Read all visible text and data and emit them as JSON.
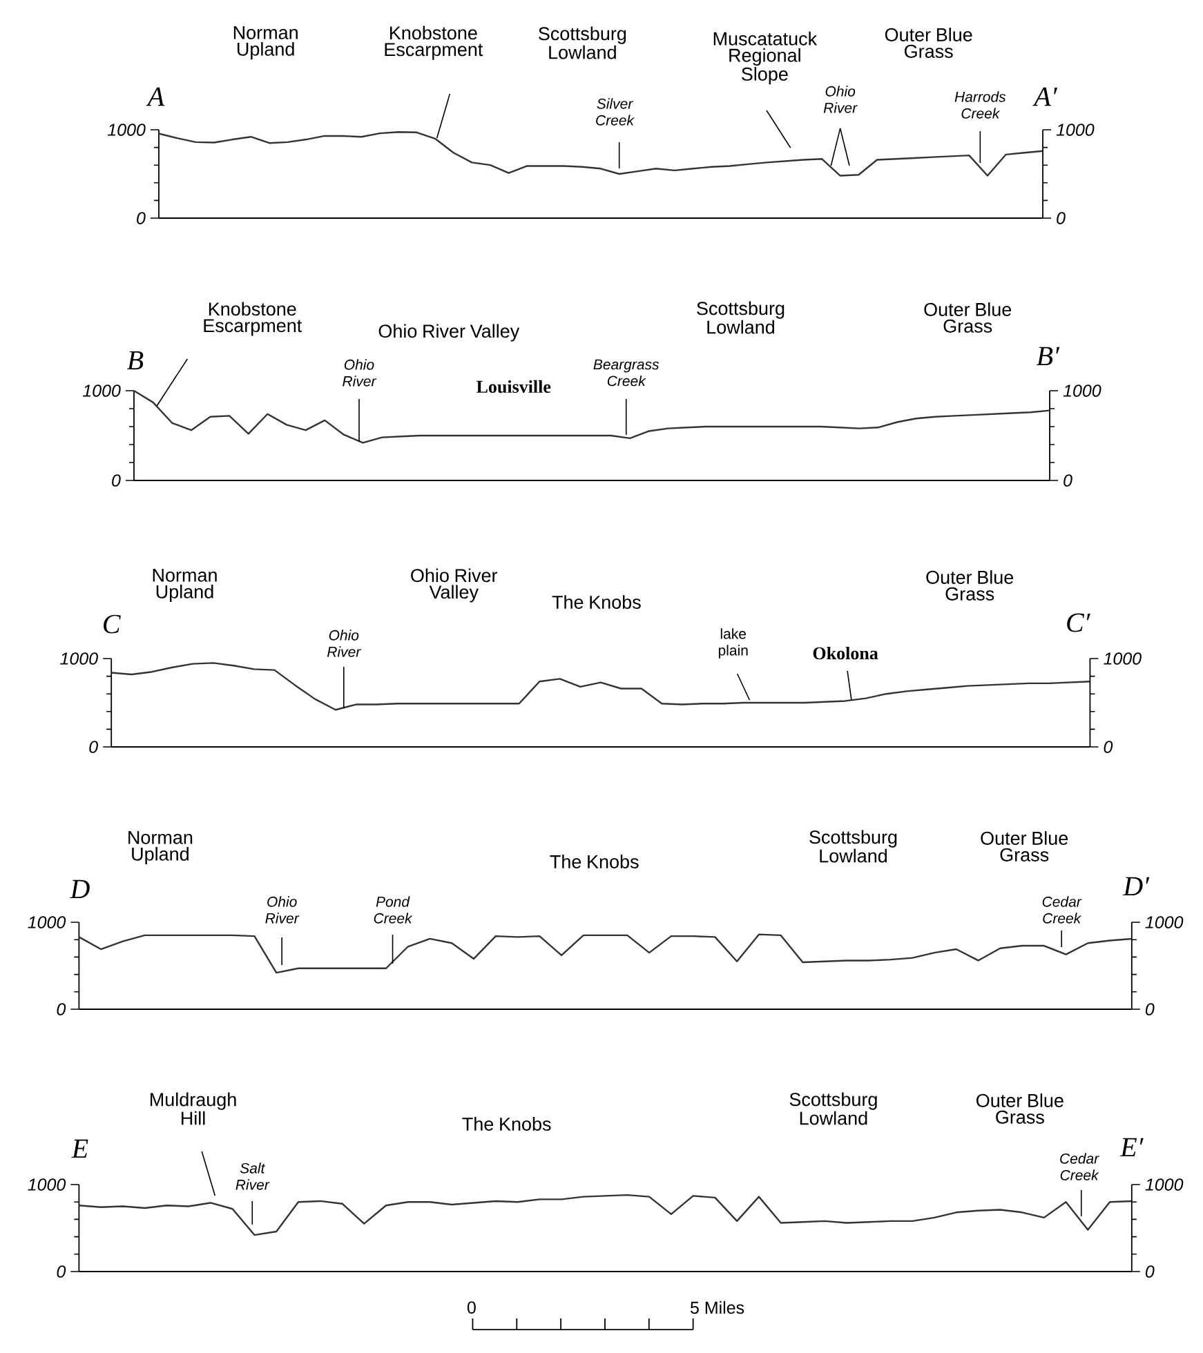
{
  "chart_data": [
    {
      "type": "line",
      "color": "#333333",
      "ylim": [
        0,
        1000
      ],
      "yticks": [
        0,
        1000
      ],
      "y2lim": [
        0,
        1000
      ],
      "y2ticks": [
        0,
        1000
      ],
      "categories": [
        null,
        null,
        null,
        null,
        null,
        null,
        null,
        null,
        null,
        null,
        null,
        null,
        null,
        null,
        null,
        null,
        null,
        null,
        null,
        null,
        null,
        null,
        null,
        null,
        null,
        null,
        null,
        null,
        null,
        null,
        null,
        null,
        null,
        null,
        null,
        null,
        null,
        null,
        null,
        null,
        null,
        null,
        null,
        null,
        null,
        null,
        null,
        null,
        null
      ],
      "values": [
        957,
        905,
        860,
        855,
        890,
        920,
        850,
        860,
        890,
        930,
        930,
        920,
        960,
        975,
        970,
        900,
        740,
        630,
        600,
        510,
        590,
        590,
        590,
        580,
        560,
        500,
        530,
        560,
        540,
        560,
        580,
        590,
        610,
        630,
        645,
        660,
        670,
        480,
        490,
        660,
        670,
        680,
        690,
        700,
        710,
        480,
        720,
        740,
        760
      ],
      "annotations": [
        "A",
        "A′",
        "Norman Upland",
        "Knobstone Escarpment",
        "Scottsburg Lowland",
        "Muscatatuck Regional Slope",
        "Outer Blue Grass",
        "Silver Creek",
        "Ohio River",
        "Harrods Creek"
      ]
    },
    {
      "type": "line",
      "color": "#333333",
      "ylim": [
        0,
        1000
      ],
      "yticks": [
        0,
        1000
      ],
      "y2lim": [
        0,
        1000
      ],
      "y2ticks": [
        0,
        1000
      ],
      "categories": [
        null,
        null,
        null,
        null,
        null,
        null,
        null,
        null,
        null,
        null,
        null,
        null,
        null,
        null,
        null,
        null,
        null,
        null,
        null,
        null,
        null,
        null,
        null,
        null,
        null,
        null,
        null,
        null,
        null,
        null,
        null,
        null,
        null,
        null,
        null,
        null,
        null,
        null,
        null,
        null,
        null,
        null,
        null,
        null,
        null,
        null,
        null,
        null,
        null
      ],
      "values": [
        1000,
        870,
        640,
        560,
        710,
        720,
        520,
        740,
        620,
        560,
        670,
        510,
        420,
        480,
        490,
        500,
        500,
        500,
        500,
        500,
        500,
        500,
        500,
        500,
        500,
        500,
        470,
        550,
        580,
        590,
        600,
        600,
        600,
        600,
        600,
        600,
        600,
        590,
        580,
        590,
        650,
        690,
        710,
        720,
        730,
        740,
        750,
        760,
        780
      ],
      "annotations": [
        "B",
        "B′",
        "Knobstone Escarpment",
        "Ohio River Valley",
        "Scottsburg Lowland",
        "Outer Blue Grass",
        "Ohio River",
        "Louisville",
        "Beargrass Creek"
      ]
    },
    {
      "type": "line",
      "color": "#333333",
      "ylim": [
        0,
        1000
      ],
      "yticks": [
        0,
        1000
      ],
      "y2lim": [
        0,
        1000
      ],
      "y2ticks": [
        0,
        1000
      ],
      "categories": [
        null,
        null,
        null,
        null,
        null,
        null,
        null,
        null,
        null,
        null,
        null,
        null,
        null,
        null,
        null,
        null,
        null,
        null,
        null,
        null,
        null,
        null,
        null,
        null,
        null,
        null,
        null,
        null,
        null,
        null,
        null,
        null,
        null,
        null,
        null,
        null,
        null,
        null,
        null,
        null,
        null,
        null,
        null,
        null,
        null,
        null,
        null,
        null,
        null
      ],
      "values": [
        840,
        820,
        850,
        900,
        940,
        950,
        920,
        880,
        870,
        700,
        540,
        420,
        480,
        480,
        490,
        490,
        490,
        490,
        490,
        490,
        490,
        740,
        770,
        680,
        730,
        660,
        660,
        490,
        480,
        490,
        490,
        500,
        500,
        500,
        500,
        510,
        520,
        550,
        600,
        630,
        650,
        670,
        690,
        700,
        710,
        720,
        720,
        730,
        740
      ],
      "annotations": [
        "C",
        "C′",
        "Norman Upland",
        "Ohio River Valley",
        "The Knobs",
        "Outer Blue Grass",
        "Ohio River",
        "lake plain",
        "Okolona"
      ]
    },
    {
      "type": "line",
      "color": "#333333",
      "ylim": [
        0,
        1000
      ],
      "yticks": [
        0,
        1000
      ],
      "y2lim": [
        0,
        1000
      ],
      "y2ticks": [
        0,
        1000
      ],
      "categories": [
        null,
        null,
        null,
        null,
        null,
        null,
        null,
        null,
        null,
        null,
        null,
        null,
        null,
        null,
        null,
        null,
        null,
        null,
        null,
        null,
        null,
        null,
        null,
        null,
        null,
        null,
        null,
        null,
        null,
        null,
        null,
        null,
        null,
        null,
        null,
        null,
        null,
        null,
        null,
        null,
        null,
        null,
        null,
        null,
        null,
        null,
        null,
        null,
        null
      ],
      "values": [
        830,
        690,
        780,
        850,
        850,
        850,
        850,
        850,
        840,
        420,
        470,
        470,
        470,
        470,
        470,
        720,
        810,
        760,
        580,
        840,
        830,
        840,
        620,
        850,
        850,
        850,
        650,
        840,
        840,
        830,
        550,
        860,
        850,
        540,
        550,
        560,
        560,
        570,
        590,
        650,
        690,
        560,
        700,
        730,
        730,
        630,
        760,
        790,
        810
      ],
      "annotations": [
        "D",
        "D′",
        "Norman Upland",
        "The Knobs",
        "Scottsburg Lowland",
        "Outer Blue Grass",
        "Ohio River",
        "Pond Creek",
        "Cedar Creek"
      ]
    },
    {
      "type": "line",
      "color": "#333333",
      "ylim": [
        0,
        1000
      ],
      "yticks": [
        0,
        1000
      ],
      "y2lim": [
        0,
        1000
      ],
      "y2ticks": [
        0,
        1000
      ],
      "categories": [
        null,
        null,
        null,
        null,
        null,
        null,
        null,
        null,
        null,
        null,
        null,
        null,
        null,
        null,
        null,
        null,
        null,
        null,
        null,
        null,
        null,
        null,
        null,
        null,
        null,
        null,
        null,
        null,
        null,
        null,
        null,
        null,
        null,
        null,
        null,
        null,
        null,
        null,
        null,
        null,
        null,
        null,
        null,
        null,
        null,
        null,
        null,
        null,
        null
      ],
      "values": [
        760,
        740,
        750,
        730,
        760,
        750,
        790,
        720,
        420,
        460,
        800,
        810,
        780,
        550,
        760,
        800,
        800,
        770,
        790,
        810,
        800,
        830,
        830,
        860,
        870,
        880,
        860,
        660,
        870,
        850,
        580,
        860,
        560,
        570,
        580,
        560,
        570,
        580,
        580,
        620,
        680,
        700,
        710,
        680,
        620,
        800,
        480,
        800,
        810
      ],
      "annotations": [
        "E",
        "E′",
        "Muldraugh Hill",
        "The Knobs",
        "Scottsburg Lowland",
        "Outer Blue Grass",
        "Salt River",
        "Cedar Creek",
        "0",
        "5 Miles"
      ]
    }
  ]
}
